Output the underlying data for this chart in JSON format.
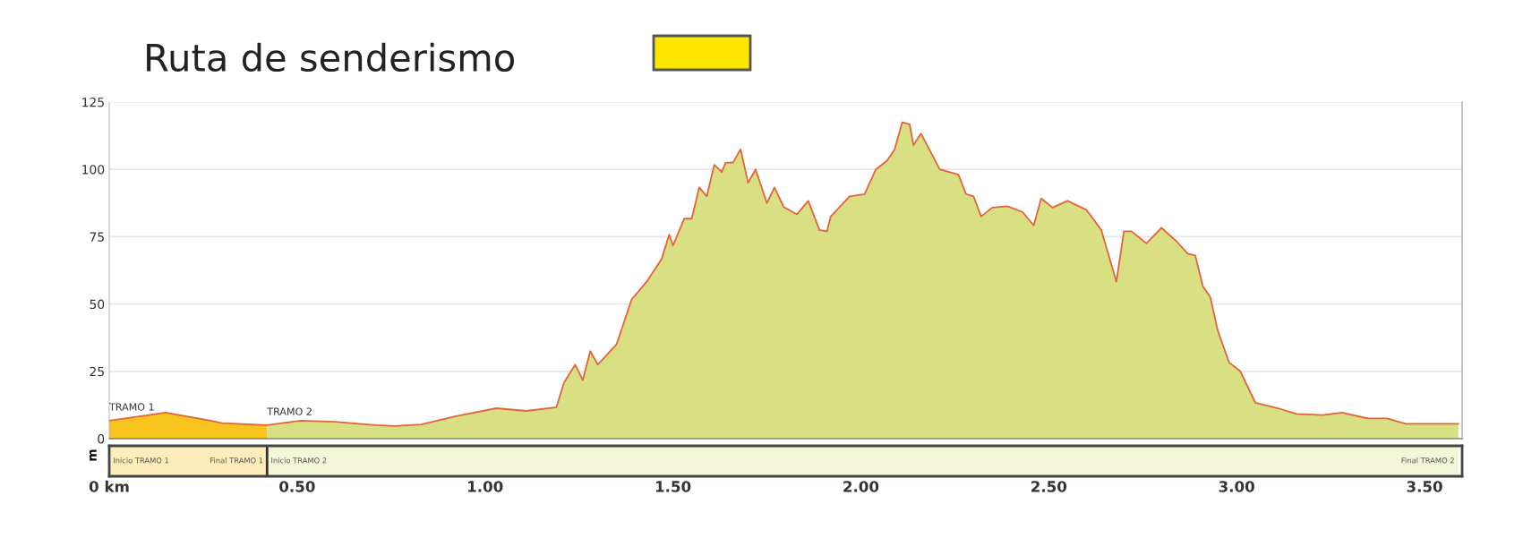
{
  "chart_data": {
    "type": "area",
    "title": "Ruta de senderismo",
    "ylabel": "m",
    "xlim": [
      0,
      3.6
    ],
    "ylim": [
      0,
      125
    ],
    "xticks": [
      {
        "value": 0,
        "label": "0 km"
      },
      {
        "value": 0.5,
        "label": "0.50"
      },
      {
        "value": 1.0,
        "label": "1.00"
      },
      {
        "value": 1.5,
        "label": "1.50"
      },
      {
        "value": 2.0,
        "label": "2.00"
      },
      {
        "value": 2.5,
        "label": "2.50"
      },
      {
        "value": 3.0,
        "label": "3.00"
      },
      {
        "value": 3.5,
        "label": "3.50"
      }
    ],
    "yticks": [
      0,
      25,
      50,
      75,
      100,
      125
    ],
    "grid": "y",
    "series": [
      {
        "name": "TRAMO 1",
        "color": "#f7c31c",
        "x": [
          0,
          0.15,
          0.27,
          0.3,
          0.42
        ],
        "values": [
          6.7,
          9.7,
          6.7,
          5.8,
          5
        ]
      },
      {
        "name": "TRAMO 2",
        "color": "#d9e083",
        "x": [
          0.42,
          0.51,
          0.6,
          0.71,
          0.76,
          0.83,
          0.92,
          1.03,
          1.11,
          1.19,
          1.21,
          1.24,
          1.26,
          1.28,
          1.3,
          1.35,
          1.39,
          1.43,
          1.47,
          1.49,
          1.5,
          1.53,
          1.55,
          1.57,
          1.59,
          1.61,
          1.63,
          1.64,
          1.66,
          1.68,
          1.7,
          1.72,
          1.75,
          1.77,
          1.795,
          1.83,
          1.86,
          1.89,
          1.91,
          1.92,
          1.97,
          2.01,
          2.04,
          2.07,
          2.09,
          2.11,
          2.13,
          2.14,
          2.16,
          2.21,
          2.26,
          2.28,
          2.3,
          2.32,
          2.35,
          2.39,
          2.43,
          2.46,
          2.48,
          2.51,
          2.55,
          2.6,
          2.64,
          2.68,
          2.7,
          2.72,
          2.76,
          2.8,
          2.84,
          2.87,
          2.89,
          2.91,
          2.93,
          2.95,
          2.98,
          3.01,
          3.05,
          3.11,
          3.16,
          3.23,
          3.28,
          3.35,
          3.4,
          3.45,
          3.59
        ],
        "values": [
          5,
          6.7,
          6.3,
          5,
          4.7,
          5.3,
          8.3,
          11.3,
          10.3,
          11.7,
          20.8,
          27.5,
          21.7,
          32.5,
          27.5,
          35,
          51.7,
          58.3,
          66.7,
          75.8,
          71.7,
          81.7,
          81.7,
          93.3,
          90,
          101.7,
          99,
          102.5,
          102.5,
          107.5,
          95,
          100,
          87.5,
          93.3,
          86,
          83.3,
          88.3,
          77.5,
          77,
          82.5,
          90,
          90.8,
          100,
          103.3,
          107.5,
          117.5,
          116.7,
          109,
          113.3,
          100,
          98,
          90.8,
          90,
          82.5,
          85.8,
          86.3,
          84.2,
          79.2,
          89.2,
          85.8,
          88.3,
          85,
          77.5,
          58.3,
          77,
          77,
          72.5,
          78.3,
          73.3,
          68.7,
          68,
          56.7,
          52.5,
          40,
          28.3,
          25,
          13.3,
          11.3,
          9.2,
          8.8,
          9.7,
          7.5,
          7.5,
          5.5,
          5.5
        ]
      },
      {
        "type": "line",
        "color": "#e0643c",
        "x": [
          0,
          0.15,
          0.27,
          0.3,
          0.42,
          0.51,
          0.6,
          0.71,
          0.76,
          0.83,
          0.92,
          1.03,
          1.11,
          1.19,
          1.21,
          1.24,
          1.26,
          1.28,
          1.3,
          1.35,
          1.39,
          1.43,
          1.47,
          1.49,
          1.5,
          1.53,
          1.55,
          1.57,
          1.59,
          1.61,
          1.63,
          1.64,
          1.66,
          1.68,
          1.7,
          1.72,
          1.75,
          1.77,
          1.795,
          1.83,
          1.86,
          1.89,
          1.91,
          1.92,
          1.97,
          2.01,
          2.04,
          2.07,
          2.09,
          2.11,
          2.13,
          2.14,
          2.16,
          2.21,
          2.26,
          2.28,
          2.3,
          2.32,
          2.35,
          2.39,
          2.43,
          2.46,
          2.48,
          2.51,
          2.55,
          2.6,
          2.64,
          2.68,
          2.7,
          2.72,
          2.76,
          2.8,
          2.84,
          2.87,
          2.89,
          2.91,
          2.93,
          2.95,
          2.98,
          3.01,
          3.05,
          3.11,
          3.16,
          3.23,
          3.28,
          3.35,
          3.4,
          3.45,
          3.59
        ],
        "values": [
          6.7,
          9.7,
          6.7,
          5.8,
          5,
          6.7,
          6.3,
          5,
          4.7,
          5.3,
          8.3,
          11.3,
          10.3,
          11.7,
          20.8,
          27.5,
          21.7,
          32.5,
          27.5,
          35,
          51.7,
          58.3,
          66.7,
          75.8,
          71.7,
          81.7,
          81.7,
          93.3,
          90,
          101.7,
          99,
          102.5,
          102.5,
          107.5,
          95,
          100,
          87.5,
          93.3,
          86,
          83.3,
          88.3,
          77.5,
          77,
          82.5,
          90,
          90.8,
          100,
          103.3,
          107.5,
          117.5,
          116.7,
          109,
          113.3,
          100,
          98,
          90.8,
          90,
          82.5,
          85.8,
          86.3,
          84.2,
          79.2,
          89.2,
          85.8,
          88.3,
          85,
          77.5,
          58.3,
          77,
          77,
          72.5,
          78.3,
          73.3,
          68.7,
          68,
          56.7,
          52.5,
          40,
          28.3,
          25,
          13.3,
          11.3,
          9.2,
          8.8,
          9.7,
          7.5,
          7.5,
          5.5,
          5.5
        ]
      }
    ],
    "annotations": [
      "Inicio TRAMO 1",
      "Final TRAMO 1",
      "Inicio TRAMO 2",
      "Final TRAMO 2"
    ]
  }
}
